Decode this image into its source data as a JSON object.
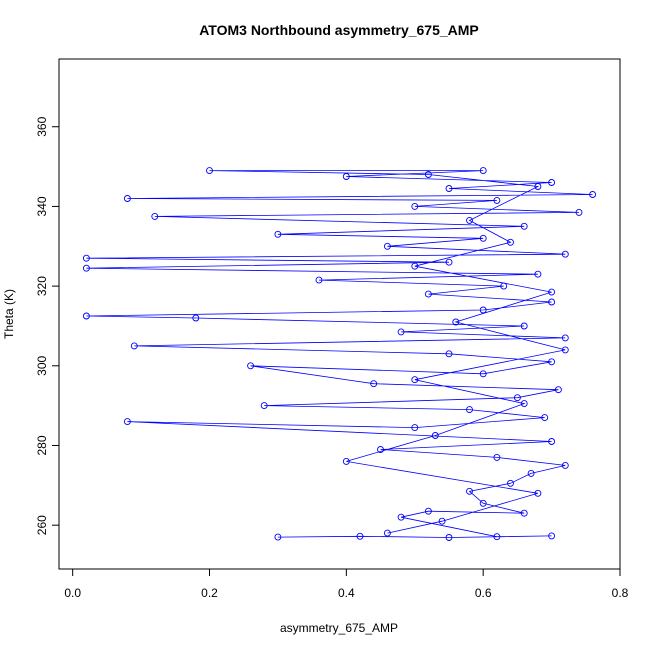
{
  "chart_data": {
    "type": "scatter",
    "title": "ATOM3 Northbound asymmetry_675_AMP",
    "xlabel": "asymmetry_675_AMP",
    "ylabel": "Theta (K)",
    "xlim": [
      -0.02,
      0.8
    ],
    "ylim": [
      249,
      377
    ],
    "x_ticks": [
      "0.0",
      "0.2",
      "0.4",
      "0.6",
      "0.8"
    ],
    "x_tick_values": [
      0.0,
      0.2,
      0.4,
      0.6,
      0.8
    ],
    "y_ticks": [
      "260",
      "280",
      "300",
      "320",
      "340",
      "360"
    ],
    "y_tick_values": [
      260,
      280,
      300,
      320,
      340,
      360
    ],
    "grid": false,
    "legend": "none",
    "point_style": "open-circle-connected",
    "color": "#0000ff",
    "series": [
      {
        "points": [
          [
            0.3,
            257.0
          ],
          [
            0.42,
            257.2
          ],
          [
            0.55,
            256.9
          ],
          [
            0.7,
            257.3
          ],
          [
            0.62,
            257.1
          ],
          [
            0.48,
            262.0
          ],
          [
            0.52,
            263.5
          ],
          [
            0.66,
            263.0
          ],
          [
            0.6,
            265.5
          ],
          [
            0.58,
            268.5
          ],
          [
            0.64,
            270.5
          ],
          [
            0.67,
            273.0
          ],
          [
            0.72,
            275.0
          ],
          [
            0.62,
            277.0
          ],
          [
            0.45,
            279.0
          ],
          [
            0.7,
            281.0
          ],
          [
            0.08,
            286.0
          ],
          [
            0.5,
            284.5
          ],
          [
            0.69,
            287.0
          ],
          [
            0.58,
            289.0
          ],
          [
            0.28,
            290.0
          ],
          [
            0.65,
            292.0
          ],
          [
            0.71,
            294.0
          ],
          [
            0.44,
            295.5
          ],
          [
            0.26,
            300.0
          ],
          [
            0.6,
            298.0
          ],
          [
            0.7,
            301.0
          ],
          [
            0.55,
            303.0
          ],
          [
            0.09,
            305.0
          ],
          [
            0.72,
            307.0
          ],
          [
            0.48,
            308.5
          ],
          [
            0.66,
            310.0
          ],
          [
            0.18,
            312.0
          ],
          [
            0.02,
            312.5
          ],
          [
            0.6,
            314.0
          ],
          [
            0.7,
            316.0
          ],
          [
            0.52,
            318.0
          ],
          [
            0.63,
            320.0
          ],
          [
            0.36,
            321.5
          ],
          [
            0.68,
            323.0
          ],
          [
            0.02,
            324.5
          ],
          [
            0.55,
            326.0
          ],
          [
            0.02,
            327.0
          ],
          [
            0.72,
            328.0
          ],
          [
            0.46,
            330.0
          ],
          [
            0.6,
            332.0
          ],
          [
            0.3,
            333.0
          ],
          [
            0.66,
            335.0
          ],
          [
            0.12,
            337.5
          ],
          [
            0.74,
            338.5
          ],
          [
            0.5,
            340.0
          ],
          [
            0.62,
            341.5
          ],
          [
            0.08,
            342.0
          ],
          [
            0.76,
            343.0
          ],
          [
            0.55,
            344.5
          ],
          [
            0.7,
            346.0
          ],
          [
            0.4,
            347.5
          ],
          [
            0.6,
            349.0
          ],
          [
            0.2,
            349.0
          ],
          [
            0.52,
            348.0
          ],
          [
            0.68,
            345.0
          ],
          [
            0.58,
            336.5
          ],
          [
            0.64,
            331.0
          ],
          [
            0.5,
            325.0
          ],
          [
            0.7,
            318.5
          ],
          [
            0.56,
            311.0
          ],
          [
            0.72,
            304.0
          ],
          [
            0.5,
            296.5
          ],
          [
            0.66,
            290.5
          ],
          [
            0.53,
            282.5
          ],
          [
            0.4,
            276.0
          ],
          [
            0.68,
            268.0
          ],
          [
            0.54,
            261.0
          ],
          [
            0.46,
            258.0
          ]
        ]
      }
    ]
  }
}
